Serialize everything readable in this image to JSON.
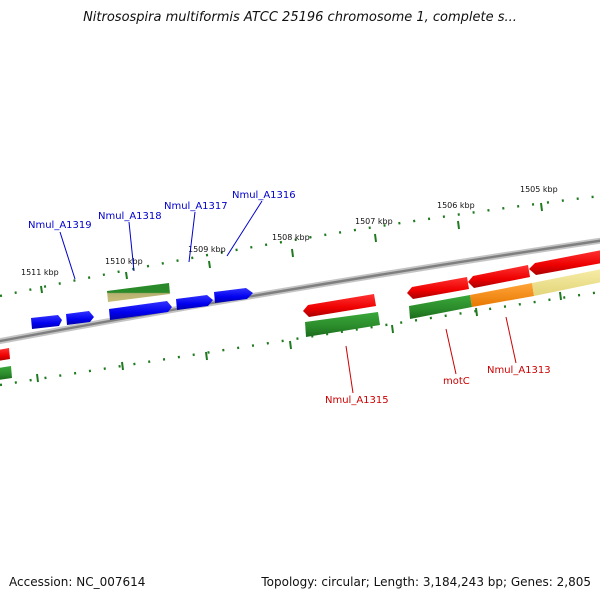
{
  "title": "Nitrosospira multiformis ATCC 25196 chromosome 1, complete s...",
  "footer": {
    "accession": "Accession: NC_007614",
    "summary": "Topology: circular; Length: 3,184,243 bp; Genes: 2,805"
  },
  "colors": {
    "genome_line": "#8a8a8a",
    "tick": "#1e7a1e",
    "cds_forward": "#0000ee",
    "gene_forward": "#2e8b2e",
    "cds_reverse": "#ee0000",
    "gene_reverse": "#2e8b2e",
    "highlight_orange": "#ff8c00",
    "highlight_khaki": "#f0e68c",
    "label_forward": "#0000cc",
    "label_reverse": "#cc0000"
  },
  "scale_labels": [
    "1511 kbp",
    "1510 kbp",
    "1509 kbp",
    "1508 kbp",
    "1507 kbp",
    "1506 kbp",
    "1505 kbp"
  ],
  "gene_labels": {
    "forward": [
      "Nmul_A1319",
      "Nmul_A1318",
      "Nmul_A1317",
      "Nmul_A1316"
    ],
    "reverse": [
      "Nmul_A1315",
      "motC",
      "Nmul_A1313"
    ]
  }
}
